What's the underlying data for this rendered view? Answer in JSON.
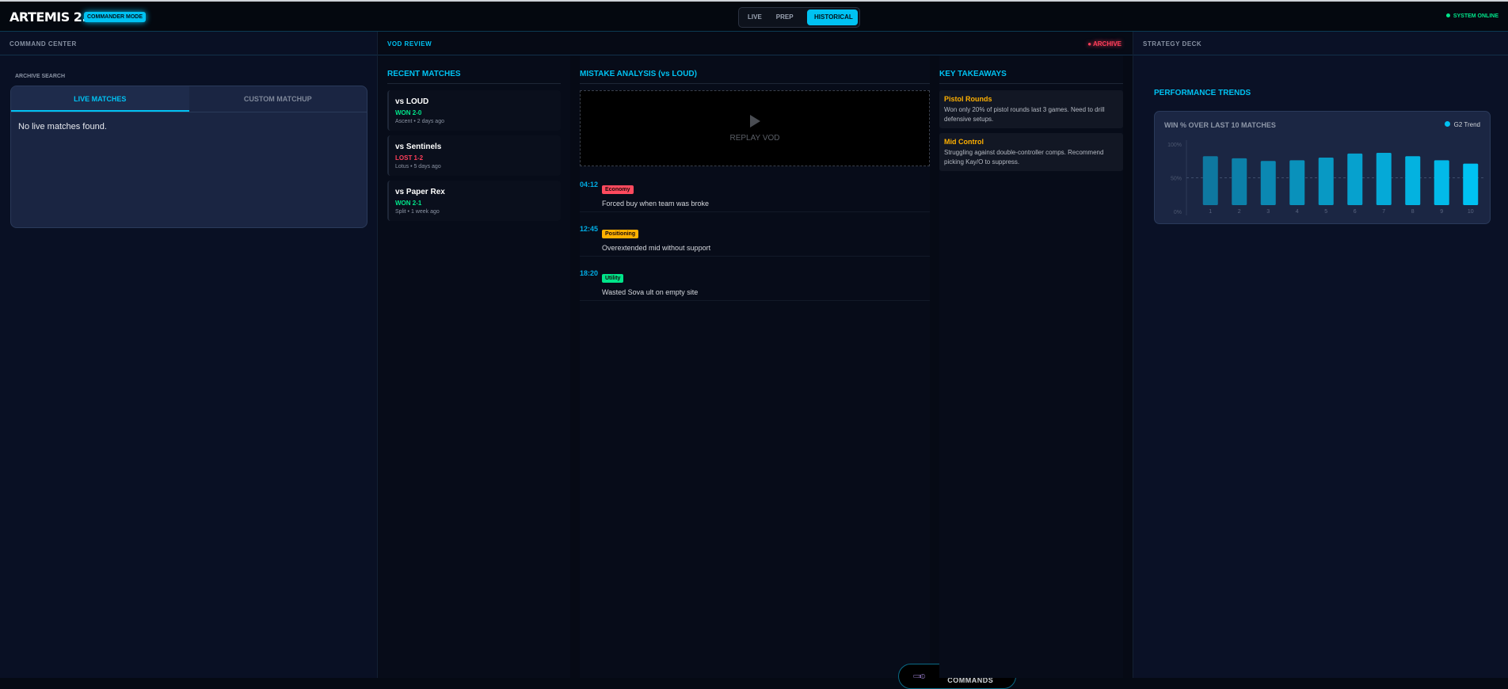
{
  "header": {
    "title": "ARTEMIS 2.0",
    "mode_badge": "COMMANDER MODE",
    "tabs": [
      "LIVE",
      "PREP",
      "HISTORICAL"
    ],
    "active_tab": "HISTORICAL",
    "status": "SYSTEM ONLINE",
    "status_color": "#00e58a",
    "accent": "#00c2f2"
  },
  "command_center": {
    "title": "COMMAND CENTER",
    "search_label": "ARCHIVE SEARCH",
    "tabs": [
      "LIVE MATCHES",
      "CUSTOM MATCHUP"
    ],
    "empty": "No live matches found."
  },
  "vod_review": {
    "title": "VOD REVIEW",
    "badge": "ARCHIVE",
    "recent_title": "RECENT MATCHES",
    "matches": [
      {
        "opponent": "vs LOUD",
        "result": "WON 2-0",
        "color": "#00e58a",
        "meta": "Ascent • 2 days ago"
      },
      {
        "opponent": "vs Sentinels",
        "result": "LOST 1-2",
        "color": "#ff3e5a",
        "meta": "Lotus • 5 days ago"
      },
      {
        "opponent": "vs Paper Rex",
        "result": "WON 2-1",
        "color": "#00e58a",
        "meta": "Split • 1 week ago"
      }
    ],
    "mistake_title": "MISTAKE ANALYSIS (vs LOUD)",
    "replay": "REPLAY VOD",
    "mistakes": [
      {
        "time": "04:12",
        "tag": "Economy",
        "color": "#ff4a5e",
        "desc": "Forced buy when team was broke"
      },
      {
        "time": "12:45",
        "tag": "Positioning",
        "color": "#ffb000",
        "desc": "Overextended mid without support"
      },
      {
        "time": "18:20",
        "tag": "Utility",
        "color": "#00e58a",
        "desc": "Wasted Sova ult on empty site"
      }
    ],
    "takeaways_title": "KEY TAKEAWAYS",
    "takeaways": [
      {
        "title": "Pistol Rounds",
        "text": "Won only 20% of pistol rounds last 3 games. Need to drill defensive setups."
      },
      {
        "title": "Mid Control",
        "text": "Struggling against double-controller comps. Recommend picking Kay/O to suppress."
      }
    ],
    "voice": "VOICE COMMANDS"
  },
  "strategy_deck": {
    "title": "STRATEGY DECK",
    "section": "PERFORMANCE TRENDS"
  },
  "chart_data": {
    "type": "bar",
    "title": "WIN % OVER LAST 10 MATCHES",
    "categories": [
      "1",
      "2",
      "3",
      "4",
      "5",
      "6",
      "7",
      "8",
      "9",
      "10"
    ],
    "series": [
      {
        "name": "G2 Trend",
        "values": [
          82,
          79,
          75,
          76,
          80,
          86,
          87,
          82,
          76,
          71
        ]
      }
    ],
    "yticks": [
      "100%",
      "50%",
      "0%"
    ],
    "ylim": [
      0,
      100
    ],
    "reference_line": 50,
    "legend": "top-right"
  }
}
